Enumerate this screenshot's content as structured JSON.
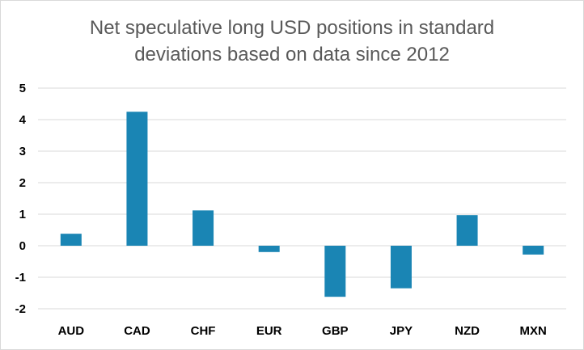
{
  "chart_data": {
    "type": "bar",
    "title_lines": [
      "Net speculative long USD positions in standard",
      "deviations based on data since 2012"
    ],
    "categories": [
      "AUD",
      "CAD",
      "CHF",
      "EUR",
      "GBP",
      "JPY",
      "NZD",
      "MXN"
    ],
    "values": [
      0.38,
      4.25,
      1.12,
      -0.2,
      -1.62,
      -1.35,
      0.97,
      -0.28
    ],
    "ylim": [
      -2,
      5
    ],
    "yticks": [
      -2,
      -1,
      0,
      1,
      2,
      3,
      4,
      5
    ],
    "grid": true,
    "legend": "none",
    "colors": {
      "bar": "#1a85b4",
      "grid": "#d9d9d9",
      "text": "#000000",
      "title": "#595959"
    }
  }
}
